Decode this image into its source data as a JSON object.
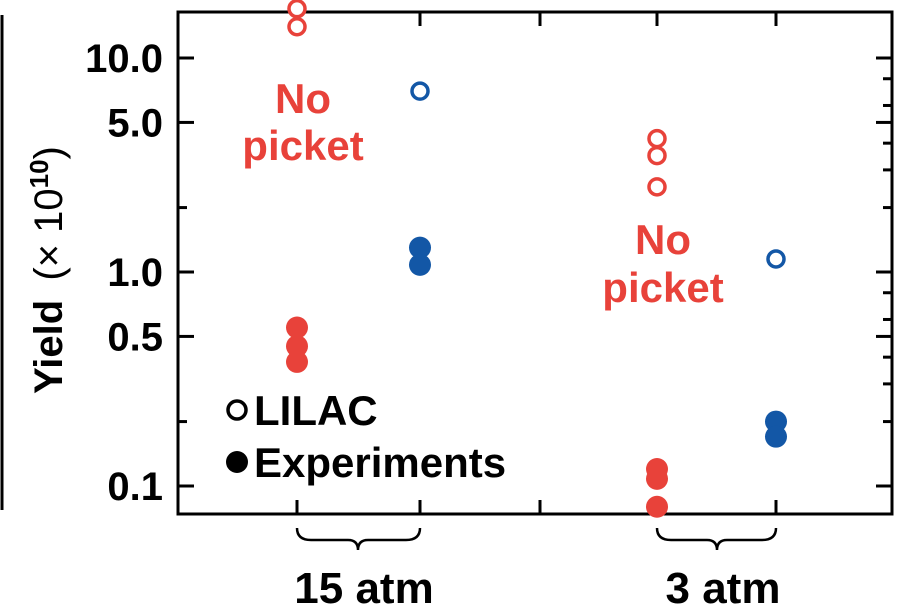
{
  "chart_data": {
    "type": "scatter",
    "y_scale": "log",
    "ylim": [
      0.07,
      20
    ],
    "ylabel": "Yield",
    "ylabel_factor": "(× 10",
    "ylabel_exponent": "10",
    "ylabel_close": ")",
    "y_tick_labels": [
      "10.0",
      "5.0",
      "1.0",
      "0.5",
      "0.1"
    ],
    "y_tick_values": [
      10,
      5,
      1,
      0.5,
      0.1
    ],
    "y_minor_values": [
      20,
      2,
      0.2
    ],
    "groups": [
      "15 atm",
      "3 atm"
    ],
    "annotations": [
      {
        "line1": "No",
        "line2": "picket",
        "group": "15 atm",
        "color": "#e8423a"
      },
      {
        "line1": "No",
        "line2": "picket",
        "group": "3 atm",
        "color": "#e8423a"
      }
    ],
    "series": [
      {
        "kind": "LILAC",
        "picket": "no",
        "group": "15 atm",
        "color": "#e8423a",
        "marker": "open",
        "values": [
          17,
          14
        ]
      },
      {
        "kind": "LILAC",
        "picket": "yes",
        "group": "15 atm",
        "color": "#1357a6",
        "marker": "open",
        "values": [
          7
        ]
      },
      {
        "kind": "Experiments",
        "picket": "no",
        "group": "15 atm",
        "color": "#e8423a",
        "marker": "filled",
        "values": [
          0.55,
          0.45,
          0.38
        ]
      },
      {
        "kind": "Experiments",
        "picket": "yes",
        "group": "15 atm",
        "color": "#1357a6",
        "marker": "filled",
        "values": [
          1.3,
          1.08
        ]
      },
      {
        "kind": "LILAC",
        "picket": "no",
        "group": "3 atm",
        "color": "#e8423a",
        "marker": "open",
        "values": [
          4.2,
          3.5,
          2.5
        ]
      },
      {
        "kind": "LILAC",
        "picket": "yes",
        "group": "3 atm",
        "color": "#1357a6",
        "marker": "open",
        "values": [
          1.15
        ]
      },
      {
        "kind": "Experiments",
        "picket": "no",
        "group": "3 atm",
        "color": "#e8423a",
        "marker": "filled",
        "values": [
          0.12,
          0.108,
          0.08
        ]
      },
      {
        "kind": "Experiments",
        "picket": "yes",
        "group": "3 atm",
        "color": "#1357a6",
        "marker": "filled",
        "values": [
          0.2,
          0.17
        ]
      }
    ],
    "legend": [
      {
        "label": "LILAC",
        "marker": "open"
      },
      {
        "label": "Experiments",
        "marker": "filled"
      }
    ],
    "legend_position": "lower-left",
    "grid": false
  }
}
